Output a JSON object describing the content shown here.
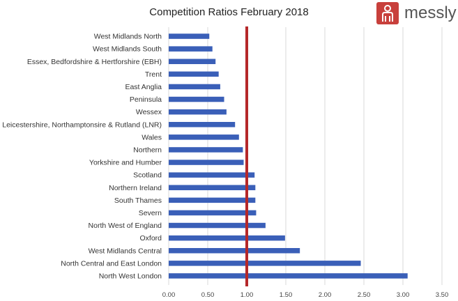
{
  "logo": {
    "text": "messly"
  },
  "chart_data": {
    "type": "bar",
    "orientation": "horizontal",
    "title": "Competition Ratios February 2018",
    "categories": [
      "West Midlands North",
      "West Midlands South",
      "Essex, Bedfordshire & Hertforshire (EBH)",
      "Trent",
      "East Anglia",
      "Peninsula",
      "Wessex",
      "Leicestershire, Northamptonsire & Rutland (LNR)",
      "Wales",
      "Northern",
      "Yorkshire and Humber",
      "Scotland",
      "Northern Ireland",
      "South Thames",
      "Severn",
      "North West of England",
      "Oxford",
      "West Midlands Central",
      "North Central and East London",
      "North West London"
    ],
    "values": [
      0.52,
      0.56,
      0.6,
      0.64,
      0.66,
      0.71,
      0.74,
      0.85,
      0.9,
      0.95,
      0.96,
      1.1,
      1.11,
      1.11,
      1.12,
      1.24,
      1.49,
      1.68,
      2.46,
      3.06
    ],
    "xlim": [
      0,
      3.5
    ],
    "xticks": [
      "0.00",
      "0.50",
      "1.00",
      "1.50",
      "2.00",
      "2.50",
      "3.00",
      "3.50"
    ],
    "reference_line": 1.0,
    "grid": true,
    "colors": {
      "bar": "#3a5fb8",
      "reference": "#b5282a",
      "grid": "#d9d9d9"
    }
  }
}
